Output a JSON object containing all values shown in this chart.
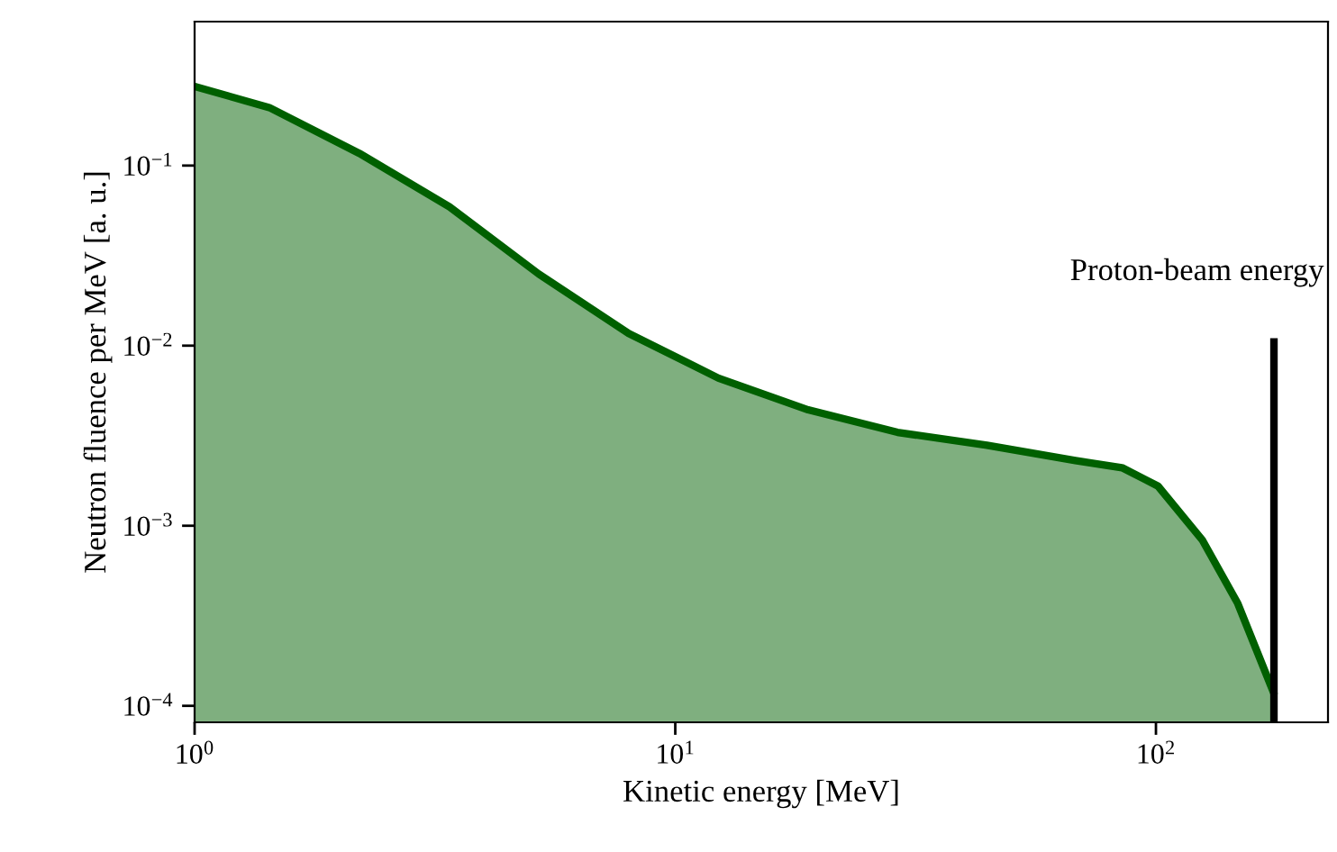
{
  "chart_data": {
    "type": "area",
    "xlabel": "Kinetic energy [MeV]",
    "ylabel": "Neutron fluence per MeV [a. u.]",
    "log": "xy",
    "xlim": [
      1,
      228
    ],
    "ylim": [
      8.1e-05,
      0.63
    ],
    "xticks": [
      {
        "value": 1,
        "label": "10$^{0}$"
      },
      {
        "value": 10,
        "label": "10$^{1}$"
      },
      {
        "value": 100,
        "label": "10$^{2}$"
      }
    ],
    "yticks": [
      {
        "value": 0.0001,
        "label": "10$^{−4}$"
      },
      {
        "value": 0.001,
        "label": "10$^{−3}$"
      },
      {
        "value": 0.01,
        "label": "10$^{−2}$"
      },
      {
        "value": 0.1,
        "label": "10$^{−1}$"
      }
    ],
    "series": [
      {
        "color": "#006000",
        "x": [
          1,
          1.43,
          2.2,
          3.39,
          5.2,
          8.0,
          12.3,
          18.9,
          29,
          44.5,
          68,
          85,
          101,
          125,
          148,
          176
        ],
        "values": [
          0.275,
          0.21,
          0.117,
          0.059,
          0.025,
          0.0117,
          0.0066,
          0.0044,
          0.0033,
          0.0028,
          0.0023,
          0.0021,
          0.00166,
          0.00083,
          0.00037,
          0.000117
        ]
      },
      {
        "type": "line",
        "color": "#000000",
        "x": [
          176,
          176
        ],
        "values": [
          8.1e-05,
          0.0105
        ]
      }
    ],
    "annotations": [
      {
        "text": "Proton-beam energy",
        "x": 176,
        "y": 0.0105
      }
    ]
  }
}
